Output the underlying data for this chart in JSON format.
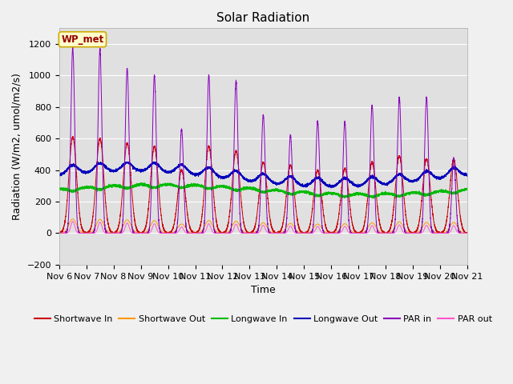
{
  "title": "Solar Radiation",
  "xlabel": "Time",
  "ylabel": "Radiation (W/m2, umol/m2/s)",
  "ylim": [
    -200,
    1300
  ],
  "yticks": [
    -200,
    0,
    200,
    400,
    600,
    800,
    1000,
    1200
  ],
  "n_days": 15,
  "xtick_labels": [
    "Nov 6",
    "Nov 7",
    "Nov 8",
    "Nov 9",
    "Nov 10",
    "Nov 11",
    "Nov 12",
    "Nov 13",
    "Nov 14",
    "Nov 15",
    "Nov 16",
    "Nov 17",
    "Nov 18",
    "Nov 19",
    "Nov 20",
    "Nov 21"
  ],
  "colors": {
    "shortwave_in": "#cc0000",
    "shortwave_out": "#ff9900",
    "longwave_in": "#00bb00",
    "longwave_out": "#0000bb",
    "par_in": "#8800bb",
    "par_out": "#ff55cc"
  },
  "background_fig": "#f0f0f0",
  "background_plot": "#e0e0e0",
  "wp_met_bg": "#ffffcc",
  "wp_met_border": "#ccaa00",
  "wp_met_text": "#990000",
  "legend_entries": [
    "Shortwave In",
    "Shortwave Out",
    "Longwave In",
    "Longwave Out",
    "PAR in",
    "PAR out"
  ],
  "grid_color": "#ffffff",
  "peak_par_in": [
    1175,
    1170,
    1045,
    1000,
    660,
    1000,
    965,
    750,
    620,
    710,
    710,
    810,
    860,
    860,
    470
  ],
  "peak_sw_in": [
    610,
    600,
    570,
    550,
    400,
    550,
    520,
    450,
    430,
    400,
    410,
    450,
    490,
    470,
    470
  ],
  "peak_par_out": [
    75,
    70,
    65,
    60,
    40,
    60,
    58,
    50,
    45,
    43,
    43,
    48,
    53,
    50,
    48
  ],
  "peak_sw_out": [
    90,
    88,
    84,
    80,
    58,
    80,
    76,
    66,
    62,
    58,
    60,
    66,
    72,
    68,
    68
  ],
  "lw_in_base": 280,
  "lw_out_base": 345,
  "lw_in_range": 30,
  "lw_out_range": 50,
  "title_fontsize": 11,
  "axis_fontsize": 8,
  "legend_fontsize": 8
}
